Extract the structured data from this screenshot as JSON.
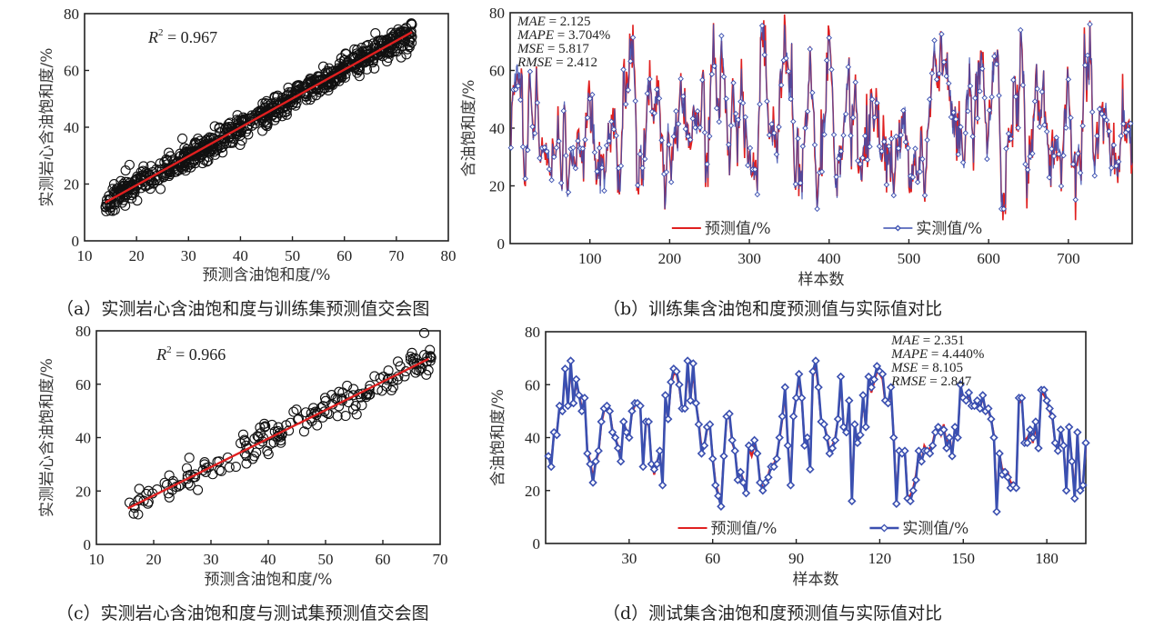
{
  "chart_data": [
    {
      "id": "a",
      "type": "scatter",
      "caption": "（a）实测岩心含油饱和度与训练集预测值交会图",
      "xlabel": "预测含油饱和度/%",
      "ylabel": "实测岩心含油饱和度/%",
      "xlim": [
        10,
        80
      ],
      "ylim": [
        0,
        80
      ],
      "xticks": [
        10,
        20,
        30,
        40,
        50,
        60,
        70,
        80
      ],
      "yticks": [
        0,
        20,
        40,
        60,
        80
      ],
      "annotation": {
        "label": "R",
        "sup": "2",
        "text": " = 0.967"
      },
      "fit_line": {
        "x": [
          14,
          73
        ],
        "y": [
          13.5,
          73.5
        ],
        "color": "#e02020"
      },
      "points_generator": {
        "n": 780,
        "x_range": [
          14,
          73
        ],
        "noise_sd": 2.4,
        "seed": 11
      },
      "marker_color": "#111111",
      "grid": false
    },
    {
      "id": "b",
      "type": "line",
      "caption": "（b）训练集含油饱和度预测值与实际值对比",
      "xlabel": "样本数",
      "ylabel": "含油饱和度/%",
      "xlim": [
        0,
        780
      ],
      "ylim": [
        0,
        80
      ],
      "xticks": [
        100,
        200,
        300,
        400,
        500,
        600,
        700
      ],
      "yticks": [
        0,
        20,
        40,
        60,
        80
      ],
      "metrics": [
        {
          "name": "MAE",
          "value": " = 2.125"
        },
        {
          "name": "MAPE",
          "value": " = 3.704%"
        },
        {
          "name": "MSE",
          "value": " = 5.817"
        },
        {
          "name": "RMSE",
          "value": " = 2.412"
        }
      ],
      "legend": [
        {
          "label": "预测值/%",
          "color": "#e02020",
          "marker": "none"
        },
        {
          "label": "实测值/%",
          "color": "#3a4fb0",
          "marker": "diamond"
        }
      ],
      "legend_placement": "bottom",
      "series_envelope": [
        [
          0,
          36
        ],
        [
          5,
          58
        ],
        [
          10,
          60
        ],
        [
          15,
          55
        ],
        [
          18,
          19
        ],
        [
          22,
          40
        ],
        [
          25,
          58
        ],
        [
          30,
          35
        ],
        [
          33,
          50
        ],
        [
          36,
          40
        ],
        [
          40,
          27
        ],
        [
          45,
          33
        ],
        [
          50,
          28
        ],
        [
          55,
          30
        ],
        [
          60,
          40
        ],
        [
          65,
          18
        ],
        [
          68,
          47
        ],
        [
          72,
          22
        ],
        [
          76,
          33
        ],
        [
          80,
          22
        ],
        [
          85,
          35
        ],
        [
          90,
          28
        ],
        [
          95,
          45
        ],
        [
          100,
          52
        ],
        [
          103,
          40
        ],
        [
          108,
          25
        ],
        [
          112,
          32
        ],
        [
          116,
          27
        ],
        [
          120,
          30
        ],
        [
          125,
          38
        ],
        [
          130,
          45
        ],
        [
          135,
          27
        ],
        [
          138,
          20
        ],
        [
          142,
          58
        ],
        [
          146,
          48
        ],
        [
          150,
          64
        ],
        [
          154,
          66
        ],
        [
          157,
          55
        ],
        [
          160,
          18
        ],
        [
          163,
          33
        ],
        [
          166,
          20
        ],
        [
          170,
          42
        ],
        [
          175,
          56
        ],
        [
          180,
          40
        ],
        [
          185,
          56
        ],
        [
          190,
          38
        ],
        [
          195,
          16
        ],
        [
          198,
          35
        ],
        [
          202,
          28
        ],
        [
          206,
          38
        ],
        [
          210,
          37
        ],
        [
          215,
          55
        ],
        [
          220,
          40
        ],
        [
          225,
          35
        ],
        [
          230,
          45
        ],
        [
          234,
          43
        ],
        [
          238,
          38
        ],
        [
          242,
          58
        ],
        [
          245,
          19
        ],
        [
          250,
          40
        ],
        [
          255,
          73
        ],
        [
          258,
          57
        ],
        [
          262,
          40
        ],
        [
          265,
          70
        ],
        [
          270,
          53
        ],
        [
          275,
          27
        ],
        [
          280,
          54
        ],
        [
          285,
          32
        ],
        [
          290,
          53
        ],
        [
          295,
          40
        ],
        [
          300,
          27
        ],
        [
          305,
          28
        ],
        [
          310,
          23
        ],
        [
          315,
          72
        ],
        [
          320,
          66
        ],
        [
          325,
          40
        ],
        [
          330,
          37
        ],
        [
          335,
          27
        ],
        [
          340,
          60
        ],
        [
          345,
          73
        ],
        [
          350,
          55
        ],
        [
          353,
          65
        ],
        [
          357,
          19
        ],
        [
          360,
          33
        ],
        [
          364,
          20
        ],
        [
          368,
          36
        ],
        [
          372,
          43
        ],
        [
          376,
          63
        ],
        [
          380,
          42
        ],
        [
          385,
          13
        ],
        [
          390,
          28
        ],
        [
          395,
          45
        ],
        [
          400,
          75
        ],
        [
          405,
          50
        ],
        [
          408,
          22
        ],
        [
          412,
          35
        ],
        [
          416,
          30
        ],
        [
          420,
          45
        ],
        [
          424,
          63
        ],
        [
          428,
          28
        ],
        [
          432,
          60
        ],
        [
          436,
          35
        ],
        [
          440,
          20
        ],
        [
          444,
          37
        ],
        [
          448,
          34
        ],
        [
          452,
          42
        ],
        [
          456,
          45
        ],
        [
          460,
          55
        ],
        [
          464,
          30
        ],
        [
          468,
          36
        ],
        [
          472,
          25
        ],
        [
          476,
          32
        ],
        [
          480,
          23
        ],
        [
          484,
          28
        ],
        [
          488,
          35
        ],
        [
          492,
          40
        ],
        [
          496,
          44
        ],
        [
          500,
          18
        ],
        [
          504,
          25
        ],
        [
          508,
          30
        ],
        [
          512,
          20
        ],
        [
          516,
          35
        ],
        [
          520,
          22
        ],
        [
          524,
          38
        ],
        [
          528,
          54
        ],
        [
          532,
          68
        ],
        [
          536,
          53
        ],
        [
          540,
          71
        ],
        [
          544,
          59
        ],
        [
          548,
          67
        ],
        [
          552,
          52
        ],
        [
          556,
          45
        ],
        [
          560,
          35
        ],
        [
          564,
          38
        ],
        [
          568,
          30
        ],
        [
          572,
          45
        ],
        [
          576,
          58
        ],
        [
          580,
          32
        ],
        [
          584,
          52
        ],
        [
          588,
          58
        ],
        [
          592,
          70
        ],
        [
          596,
          40
        ],
        [
          600,
          33
        ],
        [
          604,
          55
        ],
        [
          608,
          68
        ],
        [
          612,
          60
        ],
        [
          616,
          18
        ],
        [
          620,
          16
        ],
        [
          624,
          40
        ],
        [
          628,
          34
        ],
        [
          632,
          58
        ],
        [
          636,
          42
        ],
        [
          640,
          68
        ],
        [
          644,
          58
        ],
        [
          648,
          17
        ],
        [
          652,
          35
        ],
        [
          656,
          40
        ],
        [
          660,
          56
        ],
        [
          664,
          38
        ],
        [
          668,
          54
        ],
        [
          672,
          42
        ],
        [
          676,
          26
        ],
        [
          680,
          30
        ],
        [
          684,
          31
        ],
        [
          688,
          35
        ],
        [
          692,
          28
        ],
        [
          696,
          45
        ],
        [
          700,
          52
        ],
        [
          704,
          35
        ],
        [
          708,
          22
        ],
        [
          712,
          32
        ],
        [
          716,
          25
        ],
        [
          720,
          67
        ],
        [
          724,
          60
        ],
        [
          728,
          62
        ],
        [
          732,
          25
        ],
        [
          736,
          33
        ],
        [
          740,
          45
        ],
        [
          744,
          40
        ],
        [
          748,
          47
        ],
        [
          752,
          30
        ],
        [
          756,
          32
        ],
        [
          760,
          22
        ],
        [
          764,
          28
        ],
        [
          768,
          47
        ],
        [
          772,
          38
        ],
        [
          776,
          43
        ],
        [
          780,
          30
        ]
      ]
    },
    {
      "id": "c",
      "type": "scatter",
      "caption": "（c）实测岩心含油饱和度与测试集预测值交会图",
      "xlabel": "预测含油饱和度/%",
      "ylabel": "实测岩心含油饱和度/%",
      "xlim": [
        10,
        70
      ],
      "ylim": [
        0,
        80
      ],
      "xticks": [
        10,
        20,
        30,
        40,
        50,
        60,
        70
      ],
      "yticks": [
        0,
        20,
        40,
        60,
        80
      ],
      "annotation": {
        "label": "R",
        "sup": "2",
        "text": " = 0.966"
      },
      "fit_line": {
        "x": [
          15.5,
          68
        ],
        "y": [
          13.5,
          69.5
        ],
        "color": "#e02020"
      },
      "points_generator": {
        "n": 194,
        "x_range": [
          15.5,
          68.5
        ],
        "noise_sd": 2.8,
        "seed": 7
      },
      "marker_color": "#111111",
      "grid": false
    },
    {
      "id": "d",
      "type": "line",
      "caption": "（d）测试集含油饱和度预测值与实际值对比",
      "xlabel": "样本数",
      "ylabel": "含油饱和度/%",
      "xlim": [
        0,
        194
      ],
      "ylim": [
        0,
        80
      ],
      "xticks": [
        30,
        60,
        90,
        120,
        150,
        180
      ],
      "yticks": [
        0,
        20,
        40,
        60,
        80
      ],
      "metrics": [
        {
          "name": "MAE",
          "value": " = 2.351"
        },
        {
          "name": "MAPE",
          "value": " = 4.440%"
        },
        {
          "name": "MSE",
          "value": " = 8.105"
        },
        {
          "name": "RMSE",
          "value": " = 2.847"
        }
      ],
      "legend": [
        {
          "label": "预测值/%",
          "color": "#e02020",
          "marker": "none"
        },
        {
          "label": "实测值/%",
          "color": "#3a4fb0",
          "marker": "diamond"
        }
      ],
      "legend_placement": "bottom",
      "actual": [
        33,
        29,
        42,
        41,
        52,
        50,
        66,
        52,
        69,
        53,
        62,
        56,
        50,
        55,
        34,
        30,
        23,
        31,
        35,
        46,
        51,
        52,
        50,
        42,
        40,
        36,
        31,
        46,
        42,
        40,
        50,
        53,
        53,
        52,
        29,
        46,
        46,
        30,
        28,
        30,
        35,
        22,
        56,
        47,
        61,
        66,
        65,
        60,
        51,
        51,
        69,
        54,
        68,
        53,
        45,
        34,
        37,
        44,
        45,
        32,
        22,
        18,
        14,
        33,
        48,
        49,
        39,
        35,
        24,
        27,
        23,
        19,
        37,
        36,
        39,
        34,
        23,
        20,
        23,
        25,
        29,
        29,
        32,
        40,
        48,
        59,
        37,
        22,
        48,
        55,
        64,
        55,
        37,
        40,
        28,
        65,
        69,
        59,
        46,
        45,
        40,
        34,
        36,
        39,
        47,
        63,
        44,
        42,
        54,
        16,
        45,
        38,
        41,
        56,
        44,
        63,
        59,
        62,
        67,
        65,
        64,
        54,
        53,
        59,
        40,
        15,
        35,
        34,
        35,
        17,
        16,
        20,
        24,
        35,
        31,
        35,
        35,
        34,
        37,
        42,
        44,
        42,
        43,
        36,
        40,
        33,
        44,
        40,
        60,
        55,
        54,
        57,
        52,
        52,
        54,
        51,
        56,
        50,
        51,
        47,
        40,
        12,
        34,
        26,
        27,
        25,
        21,
        22,
        21,
        55,
        55,
        38,
        38,
        43,
        40,
        46,
        36,
        58,
        58,
        54,
        51,
        48,
        38,
        35,
        43,
        37,
        20,
        44,
        31,
        17,
        42,
        20,
        22,
        38
      ],
      "predicted": [
        32,
        31,
        41,
        42,
        51,
        51,
        64,
        53,
        66,
        54,
        60,
        57,
        51,
        54,
        35,
        31,
        25,
        31,
        34,
        45,
        50,
        51,
        50,
        43,
        40,
        37,
        32,
        45,
        43,
        41,
        49,
        52,
        53,
        51,
        30,
        45,
        45,
        31,
        26,
        31,
        34,
        24,
        55,
        47,
        60,
        64,
        64,
        59,
        51,
        51,
        66,
        54,
        65,
        53,
        46,
        36,
        37,
        43,
        44,
        33,
        23,
        19,
        16,
        33,
        47,
        48,
        38,
        35,
        25,
        27,
        24,
        20,
        36,
        33,
        37,
        34,
        24,
        21,
        22,
        26,
        30,
        30,
        33,
        39,
        47,
        57,
        38,
        24,
        47,
        56,
        62,
        54,
        38,
        40,
        29,
        63,
        67,
        58,
        46,
        45,
        41,
        35,
        37,
        40,
        47,
        61,
        45,
        43,
        53,
        18,
        44,
        39,
        41,
        54,
        44,
        62,
        57,
        61,
        65,
        64,
        62,
        53,
        53,
        57,
        41,
        17,
        35,
        34,
        35,
        18,
        18,
        21,
        26,
        34,
        31,
        37,
        35,
        36,
        38,
        43,
        44,
        41,
        45,
        37,
        41,
        34,
        43,
        41,
        58,
        55,
        54,
        56,
        52,
        53,
        53,
        51,
        55,
        51,
        50,
        47,
        41,
        15,
        34,
        28,
        28,
        27,
        23,
        23,
        22,
        53,
        54,
        39,
        40,
        42,
        38,
        44,
        37,
        57,
        56,
        54,
        50,
        47,
        38,
        35,
        42,
        37,
        22,
        43,
        32,
        19,
        42,
        22,
        23,
        36
      ]
    }
  ]
}
